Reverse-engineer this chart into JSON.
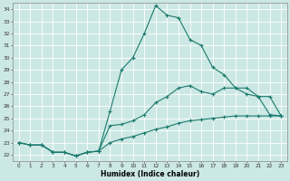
{
  "xlabel": "Humidex (Indice chaleur)",
  "background_color": "#cce8e4",
  "grid_color": "#ffffff",
  "line_color": "#1a7a6e",
  "xlim": [
    -0.5,
    23.5
  ],
  "ylim": [
    21.5,
    34.5
  ],
  "yticks": [
    22,
    23,
    24,
    25,
    26,
    27,
    28,
    29,
    30,
    31,
    32,
    33,
    34
  ],
  "xticks": [
    0,
    1,
    2,
    3,
    4,
    5,
    6,
    7,
    8,
    9,
    10,
    11,
    12,
    13,
    14,
    15,
    16,
    17,
    18,
    19,
    20,
    21,
    22,
    23
  ],
  "series1_y": [
    23.0,
    22.8,
    22.8,
    22.2,
    22.2,
    21.9,
    22.2,
    22.3,
    25.6,
    29.0,
    30.0,
    32.0,
    34.3,
    33.5,
    33.3,
    31.5,
    31.0,
    29.2,
    28.6,
    27.5,
    27.5,
    26.8,
    25.3,
    25.2
  ],
  "series2_y": [
    23.0,
    22.8,
    22.8,
    22.2,
    22.2,
    21.9,
    22.2,
    22.3,
    24.4,
    24.5,
    24.8,
    25.3,
    26.3,
    26.8,
    27.5,
    27.7,
    27.2,
    27.0,
    27.5,
    27.5,
    27.0,
    26.8,
    26.8,
    25.2
  ],
  "series3_y": [
    23.0,
    22.8,
    22.8,
    22.2,
    22.2,
    21.9,
    22.2,
    22.3,
    23.0,
    23.3,
    23.5,
    23.8,
    24.1,
    24.3,
    24.6,
    24.8,
    24.9,
    25.0,
    25.1,
    25.2,
    25.2,
    25.2,
    25.2,
    25.2
  ]
}
